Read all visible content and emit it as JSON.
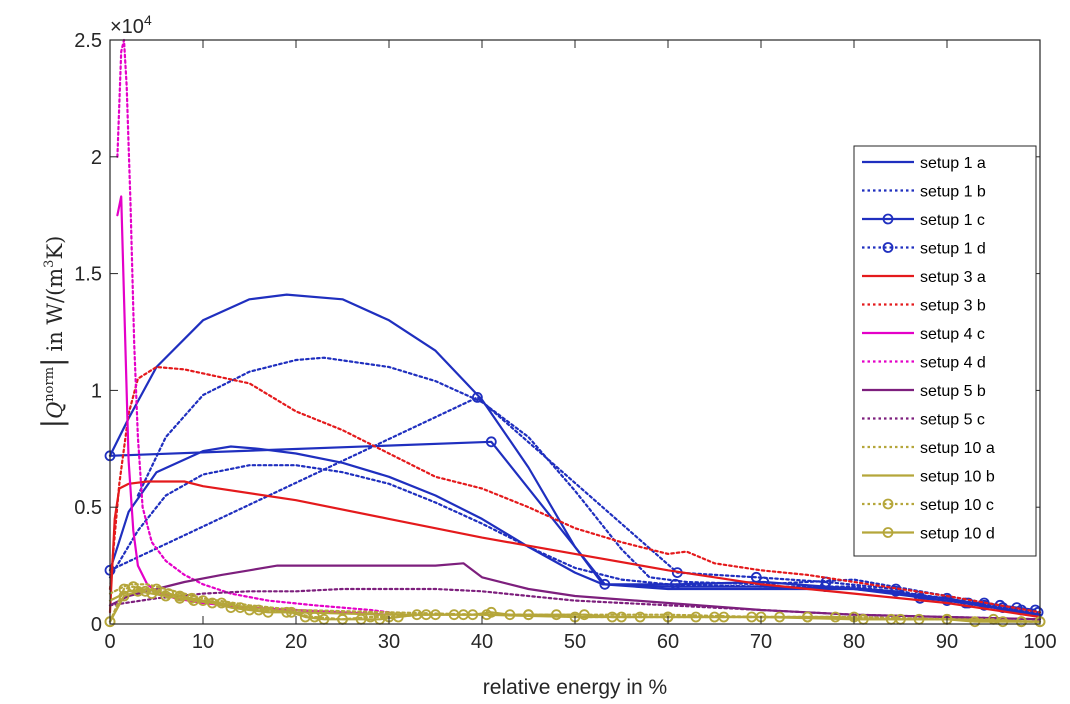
{
  "chart_data": {
    "type": "line",
    "xlabel": "relative energy in %",
    "ylabel": {
      "bar_left": "|",
      "symbol": "Q",
      "superscript": "norm",
      "bar_right": "|",
      "unit_prefix": "in W/(m",
      "unit_sup": "3",
      "unit_suffix": "K)"
    },
    "y_exponent": {
      "base": "×10",
      "power": "4"
    },
    "xlim": [
      0,
      100
    ],
    "ylim": [
      0,
      25000
    ],
    "x_ticks": [
      0,
      10,
      20,
      30,
      40,
      50,
      60,
      70,
      80,
      90,
      100
    ],
    "x_tick_labels": [
      "0",
      "10",
      "20",
      "30",
      "40",
      "50",
      "60",
      "70",
      "80",
      "90",
      "100"
    ],
    "y_ticks": [
      0,
      5000,
      10000,
      15000,
      20000,
      25000
    ],
    "y_tick_labels": [
      "0",
      "0.5",
      "1",
      "1.5",
      "2",
      "2.5"
    ],
    "grid": false,
    "legend_position": "right",
    "series": [
      {
        "name": "setup 1 a",
        "color": "#1f2fbf",
        "dash": "solid",
        "marker": "none",
        "x": [
          0,
          2,
          5,
          10,
          13,
          16,
          20,
          25,
          30,
          35,
          40,
          45,
          50,
          53,
          60,
          70,
          80,
          90,
          95,
          100
        ],
        "y": [
          2300,
          4800,
          6500,
          7400,
          7600,
          7500,
          7300,
          6900,
          6300,
          5500,
          4500,
          3300,
          2200,
          1700,
          1600,
          1600,
          1500,
          1100,
          700,
          300
        ]
      },
      {
        "name": "setup 1 a",
        "color": "#1f2fbf",
        "dash": "solid",
        "marker": "none",
        "x": [
          0,
          2,
          5,
          10,
          15,
          19,
          25,
          30,
          35,
          40,
          45,
          50,
          53,
          60,
          70,
          80,
          90,
          95,
          100
        ],
        "y": [
          7200,
          8800,
          11000,
          13000,
          13900,
          14100,
          13900,
          13000,
          11700,
          9600,
          6700,
          3300,
          1700,
          1500,
          1500,
          1500,
          1000,
          700,
          400
        ]
      },
      {
        "name": "setup 1 b",
        "color": "#1f2fbf",
        "dash": "dotted",
        "marker": "none",
        "x": [
          0,
          3,
          6,
          10,
          15,
          20,
          25,
          30,
          35,
          40,
          45,
          50,
          55,
          60,
          70,
          80,
          90,
          100
        ],
        "y": [
          2000,
          4000,
          5500,
          6400,
          6800,
          6800,
          6500,
          6000,
          5200,
          4300,
          3300,
          2400,
          1900,
          1700,
          1600,
          1600,
          1100,
          400
        ]
      },
      {
        "name": "setup 1 b",
        "color": "#1f2fbf",
        "dash": "dotted",
        "marker": "none",
        "x": [
          3,
          6,
          10,
          15,
          20,
          23,
          30,
          35,
          40,
          45,
          50,
          55,
          58,
          62,
          70,
          80,
          90,
          100
        ],
        "y": [
          5500,
          8000,
          9800,
          10800,
          11300,
          11400,
          11000,
          10400,
          9500,
          8000,
          5700,
          3200,
          2000,
          1800,
          1700,
          1900,
          1200,
          500
        ]
      },
      {
        "name": "setup 1 c",
        "color": "#1f2fbf",
        "dash": "solid",
        "marker": "circle",
        "x": [
          0,
          41,
          53.2,
          60.8,
          70.3,
          76.9,
          84.5,
          87.1,
          90,
          92.3,
          94,
          95.7,
          97.5,
          99.5
        ],
        "y": [
          7200,
          7800,
          1700,
          1700,
          1800,
          1600,
          1400,
          1100,
          1000,
          900,
          900,
          800,
          700,
          600
        ]
      },
      {
        "name": "setup 1 d",
        "color": "#1f2fbf",
        "dash": "dotted",
        "marker": "circle",
        "x": [
          0,
          39.5,
          61,
          69.5,
          77,
          84.5,
          87,
          90,
          92,
          94,
          96,
          98,
          99.8
        ],
        "y": [
          2300,
          9700,
          2200,
          2000,
          1800,
          1500,
          1200,
          1100,
          900,
          800,
          700,
          600,
          500
        ]
      },
      {
        "name": "setup 3 a",
        "color": "#e41a1c",
        "dash": "solid",
        "marker": "none",
        "x": [
          0,
          0.5,
          1,
          2,
          4,
          8,
          10,
          20,
          30,
          40,
          50,
          60,
          70,
          80,
          90,
          100
        ],
        "y": [
          500,
          4500,
          5800,
          6000,
          6100,
          6100,
          5900,
          5300,
          4500,
          3700,
          3000,
          2300,
          1700,
          1300,
          900,
          300
        ]
      },
      {
        "name": "setup 3 b",
        "color": "#e41a1c",
        "dash": "dotted",
        "marker": "none",
        "x": [
          0,
          1,
          2,
          3,
          5,
          8,
          15,
          20,
          25,
          30,
          35,
          40,
          45,
          50,
          55,
          60,
          62,
          65,
          70,
          75,
          80,
          90,
          100
        ],
        "y": [
          1500,
          6000,
          9000,
          10500,
          11000,
          10900,
          10300,
          9100,
          8300,
          7300,
          6300,
          5800,
          5000,
          4100,
          3500,
          3000,
          3100,
          2600,
          2300,
          2100,
          1800,
          1200,
          500
        ]
      },
      {
        "name": "setup 4 c",
        "color": "#e400c8",
        "dash": "solid",
        "marker": "none",
        "x": [
          0.8,
          1.2,
          1.5,
          2,
          2.5,
          3,
          4,
          5,
          7,
          10,
          15,
          20,
          25,
          30
        ],
        "y": [
          17500,
          18300,
          14000,
          7000,
          4000,
          2500,
          1700,
          1400,
          1100,
          900,
          700,
          600,
          500,
          400
        ]
      },
      {
        "name": "setup 4 d",
        "color": "#e400c8",
        "dash": "dotted",
        "marker": "none",
        "x": [
          0.8,
          1.2,
          1.5,
          1.8,
          2.2,
          2.6,
          3,
          3.5,
          4.5,
          6,
          8,
          10,
          13,
          17,
          22,
          28,
          30
        ],
        "y": [
          20000,
          24500,
          25000,
          23000,
          18000,
          12000,
          8000,
          5000,
          3500,
          2700,
          2100,
          1700,
          1300,
          1000,
          800,
          600,
          500
        ]
      },
      {
        "name": "setup 5 b",
        "color": "#7d1f7d",
        "dash": "solid",
        "marker": "none",
        "x": [
          0,
          2,
          5,
          8,
          12,
          15,
          18,
          20,
          25,
          30,
          35,
          38,
          40,
          45,
          50,
          60,
          70,
          80,
          90,
          100
        ],
        "y": [
          800,
          1200,
          1500,
          1800,
          2100,
          2300,
          2500,
          2500,
          2500,
          2500,
          2500,
          2600,
          2000,
          1500,
          1200,
          900,
          600,
          400,
          300,
          200
        ]
      },
      {
        "name": "setup 5 c",
        "color": "#7d1f7d",
        "dash": "dotted",
        "marker": "none",
        "x": [
          0,
          5,
          10,
          15,
          20,
          25,
          30,
          35,
          40,
          45,
          50,
          60,
          70,
          80,
          90,
          100
        ],
        "y": [
          800,
          1100,
          1300,
          1400,
          1400,
          1500,
          1500,
          1500,
          1400,
          1200,
          1000,
          800,
          600,
          400,
          300,
          200
        ]
      },
      {
        "name": "setup 10 a",
        "color": "#b5a63a",
        "dash": "dotted",
        "marker": "none",
        "x": [
          0,
          2,
          4,
          6,
          10,
          15,
          20,
          30,
          40,
          50,
          60,
          70,
          80,
          90,
          100
        ],
        "y": [
          1300,
          1700,
          1700,
          1500,
          1100,
          800,
          600,
          500,
          400,
          400,
          400,
          300,
          300,
          200,
          100
        ]
      },
      {
        "name": "setup 10 b",
        "color": "#b5a63a",
        "dash": "solid",
        "marker": "none",
        "x": [
          0,
          2,
          4,
          6,
          10,
          15,
          20,
          30,
          40,
          50,
          60,
          70,
          80,
          90,
          100
        ],
        "y": [
          1000,
          1400,
          1500,
          1300,
          1000,
          700,
          500,
          400,
          400,
          300,
          300,
          300,
          200,
          200,
          100
        ]
      },
      {
        "name": "setup 10 c",
        "color": "#b5a63a",
        "dash": "dotted",
        "marker": "circle",
        "x": [
          0,
          1.5,
          2.5,
          3.8,
          5,
          6.3,
          7.5,
          8.8,
          10,
          12,
          14,
          16,
          19,
          22,
          25,
          28,
          30,
          34,
          38,
          40.5,
          45,
          50,
          55,
          60,
          65,
          70,
          75,
          80,
          85,
          90,
          95,
          98,
          100
        ],
        "y": [
          100,
          1500,
          1600,
          1400,
          1500,
          1300,
          1200,
          1100,
          1000,
          900,
          700,
          600,
          500,
          300,
          200,
          300,
          300,
          400,
          400,
          400,
          400,
          300,
          300,
          300,
          300,
          300,
          300,
          300,
          200,
          200,
          200,
          100,
          100
        ]
      },
      {
        "name": "setup 10 d",
        "color": "#b5a63a",
        "dash": "solid",
        "marker": "circle",
        "x": [
          0,
          1.5,
          3,
          4.5,
          6,
          7.5,
          9,
          11,
          13,
          15,
          17,
          19.5,
          21,
          23,
          25,
          27,
          29,
          31,
          33,
          35,
          37,
          39,
          41,
          43,
          45,
          48,
          51,
          54,
          57,
          60,
          63,
          66,
          69,
          72,
          75,
          78,
          81,
          84,
          87,
          90,
          93,
          96,
          98,
          100
        ],
        "y": [
          100,
          1200,
          1400,
          1300,
          1200,
          1100,
          1000,
          900,
          700,
          600,
          500,
          500,
          300,
          200,
          200,
          200,
          200,
          300,
          400,
          400,
          400,
          400,
          500,
          400,
          400,
          400,
          400,
          300,
          300,
          300,
          300,
          300,
          300,
          300,
          300,
          300,
          200,
          200,
          200,
          200,
          100,
          100,
          100,
          100
        ]
      }
    ],
    "legend": [
      {
        "label": "setup 1 a",
        "color": "#1f2fbf",
        "dash": "solid",
        "marker": "none"
      },
      {
        "label": "setup 1 b",
        "color": "#1f2fbf",
        "dash": "dotted",
        "marker": "none"
      },
      {
        "label": "setup 1 c",
        "color": "#1f2fbf",
        "dash": "solid",
        "marker": "circle"
      },
      {
        "label": "setup 1 d",
        "color": "#1f2fbf",
        "dash": "dotted",
        "marker": "circle"
      },
      {
        "label": "setup 3 a",
        "color": "#e41a1c",
        "dash": "solid",
        "marker": "none"
      },
      {
        "label": "setup 3 b",
        "color": "#e41a1c",
        "dash": "dotted",
        "marker": "none"
      },
      {
        "label": "setup 4 c",
        "color": "#e400c8",
        "dash": "solid",
        "marker": "none"
      },
      {
        "label": "setup 4 d",
        "color": "#e400c8",
        "dash": "dotted",
        "marker": "none"
      },
      {
        "label": "setup 5 b",
        "color": "#7d1f7d",
        "dash": "solid",
        "marker": "none"
      },
      {
        "label": "setup 5 c",
        "color": "#7d1f7d",
        "dash": "dotted",
        "marker": "none"
      },
      {
        "label": "setup 10 a",
        "color": "#b5a63a",
        "dash": "dotted",
        "marker": "none"
      },
      {
        "label": "setup 10 b",
        "color": "#b5a63a",
        "dash": "solid",
        "marker": "none"
      },
      {
        "label": "setup 10 c",
        "color": "#b5a63a",
        "dash": "dotted",
        "marker": "circle"
      },
      {
        "label": "setup 10 d",
        "color": "#b5a63a",
        "dash": "solid",
        "marker": "circle"
      }
    ]
  }
}
